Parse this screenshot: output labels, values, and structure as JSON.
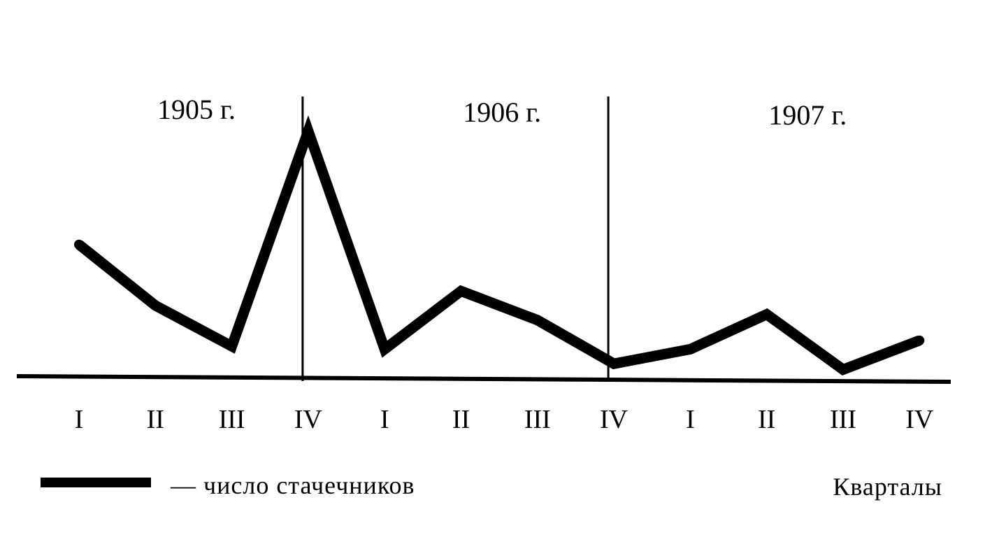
{
  "chart_data": {
    "type": "line",
    "title": "",
    "xlabel": "Кварталы",
    "ylabel": "",
    "grid": false,
    "legend_position": "bottom-left",
    "years": [
      "1905 г.",
      "1906 г.",
      "1907 г."
    ],
    "categories": [
      "I",
      "II",
      "III",
      "IV",
      "I",
      "II",
      "III",
      "IV",
      "I",
      "II",
      "III",
      "IV"
    ],
    "series": [
      {
        "name": "— число стачечников",
        "values": [
          4.6,
          2.5,
          1.1,
          8.5,
          1.0,
          3.0,
          2.0,
          0.5,
          1.0,
          2.2,
          0.3,
          1.3
        ]
      }
    ],
    "ylim": [
      0,
      9.4
    ],
    "line_color": "#000000"
  }
}
